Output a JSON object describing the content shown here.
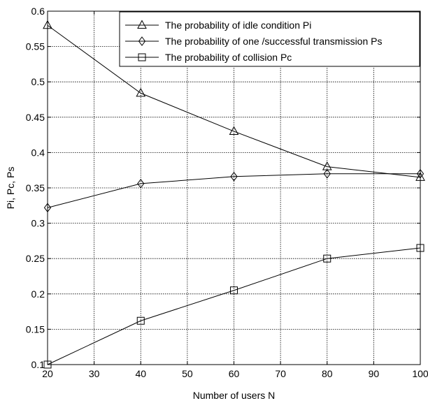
{
  "chart_data": {
    "type": "line",
    "xlabel": "Number of users N",
    "ylabel": "Pi, Pc, Ps",
    "xlim": [
      20,
      100
    ],
    "ylim": [
      0.1,
      0.6
    ],
    "xticks": [
      "20",
      "30",
      "40",
      "50",
      "60",
      "70",
      "80",
      "90",
      "100"
    ],
    "yticks": [
      "0.1",
      "0.15",
      "0.2",
      "0.25",
      "0.3",
      "0.35",
      "0.4",
      "0.45",
      "0.5",
      "0.55",
      "0.6"
    ],
    "grid": true,
    "legend_position": "top-right",
    "x": [
      20,
      40,
      60,
      80,
      100
    ],
    "series": [
      {
        "name": "The probability of idle condition Pi",
        "marker": "triangle",
        "values": [
          0.58,
          0.484,
          0.43,
          0.38,
          0.365
        ]
      },
      {
        "name": "The probability of one /successful transmission Ps",
        "marker": "diamond",
        "values": [
          0.322,
          0.356,
          0.366,
          0.37,
          0.37
        ]
      },
      {
        "name": "The probability of collision  Pc",
        "marker": "square",
        "values": [
          0.1,
          0.162,
          0.205,
          0.25,
          0.265
        ]
      }
    ]
  }
}
